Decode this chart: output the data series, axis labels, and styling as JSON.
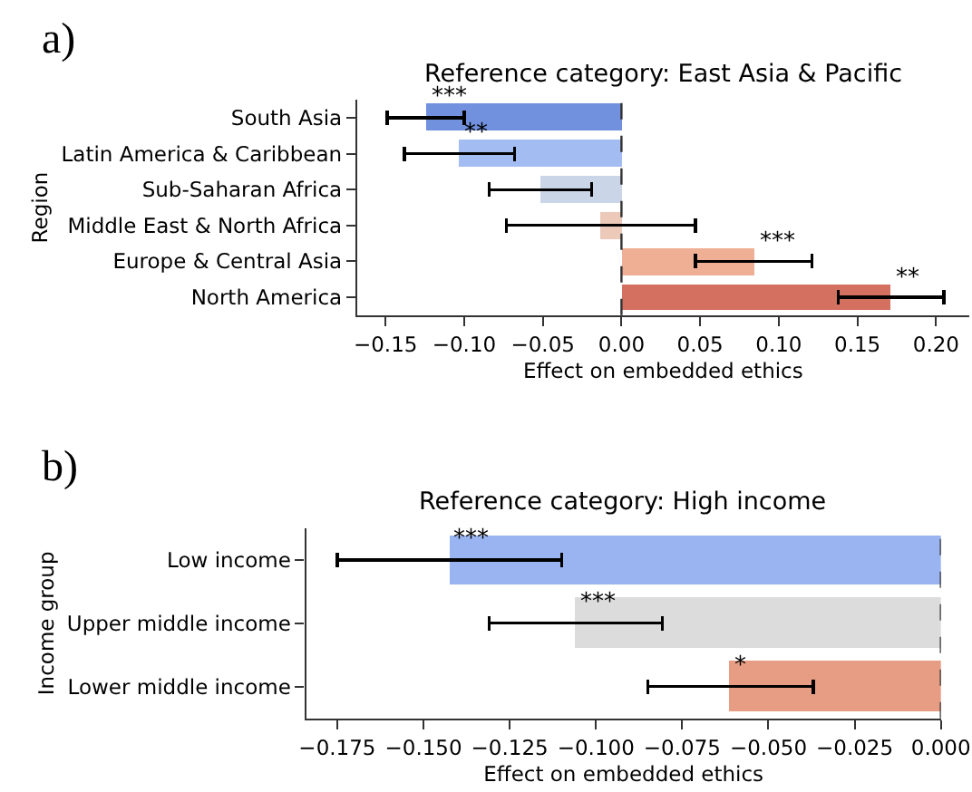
{
  "chart_data": [
    {
      "type": "bar",
      "orientation": "horizontal",
      "title": "Reference category: East Asia & Pacific",
      "xlabel": "Effect on embedded ethics",
      "ylabel": "Region",
      "categories": [
        "South Asia",
        "Latin America & Caribbean",
        "Sub-Saharan Africa",
        "Middle East & North Africa",
        "Europe & Central Asia",
        "North America"
      ],
      "values": [
        -0.124,
        -0.103,
        -0.052,
        -0.013,
        0.084,
        0.171
      ],
      "colors": [
        "#7191de",
        "#a3bdf3",
        "#cbd5e8",
        "#ecc9b8",
        "#efaf94",
        "#d4705f"
      ],
      "errors": [
        [
          -0.149,
          -0.1
        ],
        [
          -0.138,
          -0.068
        ],
        [
          -0.084,
          -0.019
        ],
        [
          -0.073,
          0.047
        ],
        [
          0.047,
          0.121
        ],
        [
          0.138,
          0.205
        ]
      ],
      "xlim": [
        -0.168,
        0.221
      ],
      "xticks": [
        {
          "value": -0.15,
          "label": "−0.15"
        },
        {
          "value": -0.1,
          "label": "−0.10"
        },
        {
          "value": -0.05,
          "label": "−0.05"
        },
        {
          "value": 0,
          "label": "0.00"
        },
        {
          "value": 0.05,
          "label": "0.05"
        },
        {
          "value": 0.1,
          "label": "0.10"
        },
        {
          "value": 0.15,
          "label": "0.15"
        },
        {
          "value": 0.2,
          "label": "0.20"
        }
      ],
      "ref_lines": [
        {
          "axis": "x",
          "value": 0,
          "color": "#333333",
          "line_style": "dashed"
        }
      ],
      "annotations": [
        "a)",
        {
          "text": "***",
          "x": -0.124,
          "y": "South Asia"
        },
        {
          "text": "**",
          "x": -0.103,
          "y": "Latin America & Caribbean"
        },
        {
          "text": "***",
          "x": 0.084,
          "y": "Europe & Central Asia"
        },
        {
          "text": "**",
          "x": 0.171,
          "y": "North America"
        }
      ]
    },
    {
      "type": "bar",
      "orientation": "horizontal",
      "title": "Reference category: High income",
      "xlabel": "Effect on embedded ethics",
      "ylabel": "Income group",
      "categories": [
        "Low income",
        "Upper middle income",
        "Lower middle income"
      ],
      "values": [
        -0.1427,
        -0.106,
        -0.0613
      ],
      "colors": [
        "#99b4f1",
        "#dcdcdc",
        "#e69d83"
      ],
      "errors": [
        [
          -0.175,
          -0.11
        ],
        [
          -0.131,
          -0.0807
        ],
        [
          -0.085,
          -0.037
        ]
      ],
      "xlim": [
        -0.184,
        0.0
      ],
      "xticks": [
        {
          "value": -0.175,
          "label": "−0.175"
        },
        {
          "value": -0.15,
          "label": "−0.150"
        },
        {
          "value": -0.125,
          "label": "−0.125"
        },
        {
          "value": -0.1,
          "label": "−0.100"
        },
        {
          "value": -0.075,
          "label": "−0.075"
        },
        {
          "value": -0.05,
          "label": "−0.050"
        },
        {
          "value": -0.025,
          "label": "−0.025"
        },
        {
          "value": 0,
          "label": "0.000"
        }
      ],
      "ref_lines": [
        {
          "axis": "x",
          "value": 0,
          "color": "#333333",
          "line_style": "dashed"
        }
      ],
      "annotations": [
        "b)",
        {
          "text": "***",
          "x": -0.1427,
          "y": "Low income"
        },
        {
          "text": "***",
          "x": -0.106,
          "y": "Upper middle income"
        },
        {
          "text": "*",
          "x": -0.0613,
          "y": "Lower middle income"
        }
      ]
    }
  ]
}
